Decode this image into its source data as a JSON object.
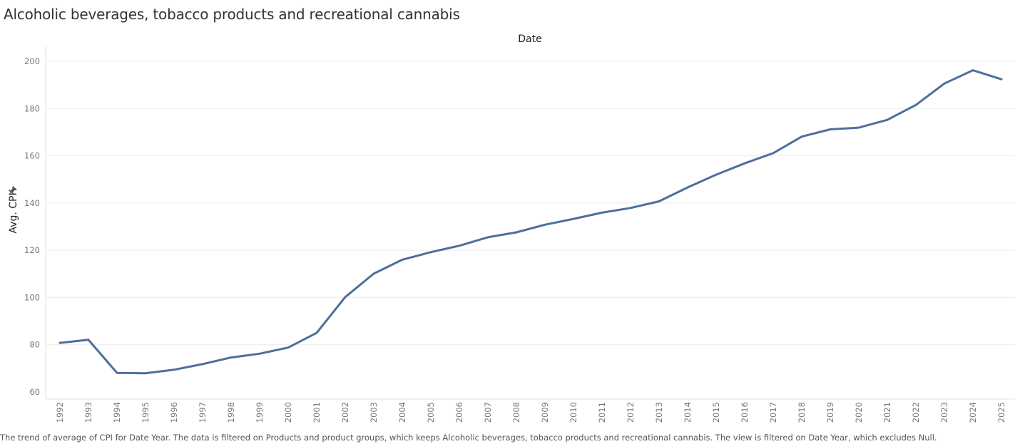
{
  "page": {
    "title": "Alcoholic beverages, tobacco products and recreational cannabis",
    "footer": "The trend of average of CPI for Date Year. The data is filtered on Products and product groups, which keeps Alcoholic beverages, tobacco products and recreational cannabis. The view is filtered on Date Year, which excludes Null."
  },
  "colors": {
    "line": "#4e6f9a",
    "grid": "#ebebeb",
    "tick_label": "#777777"
  },
  "icons": {
    "pin": "pin-icon"
  },
  "chart_data": {
    "type": "line",
    "title": "Alcoholic beverages, tobacco products and recreational cannabis",
    "xlabel": "Date",
    "ylabel": "Avg. CPI",
    "ylim": [
      60,
      200
    ],
    "yticks": [
      60,
      80,
      100,
      120,
      140,
      160,
      180,
      200
    ],
    "grid": true,
    "categories": [
      "1992",
      "1993",
      "1994",
      "1995",
      "1996",
      "1997",
      "1998",
      "1999",
      "2000",
      "2001",
      "2002",
      "2003",
      "2004",
      "2005",
      "2006",
      "2007",
      "2008",
      "2009",
      "2010",
      "2011",
      "2012",
      "2013",
      "2014",
      "2015",
      "2016",
      "2017",
      "2018",
      "2019",
      "2020",
      "2021",
      "2022",
      "2023",
      "2024",
      "2025"
    ],
    "series": [
      {
        "values": [
          80.8,
          82.1,
          68.1,
          67.9,
          69.4,
          71.8,
          74.6,
          76.2,
          78.8,
          85.0,
          100.2,
          110.1,
          116.0,
          119.2,
          121.9,
          125.5,
          127.6,
          130.8,
          133.3,
          135.9,
          137.9,
          140.7,
          146.6,
          152.0,
          156.8,
          161.1,
          168.1,
          171.2,
          171.9,
          175.2,
          181.5,
          190.6,
          196.2,
          192.4
        ]
      }
    ]
  }
}
